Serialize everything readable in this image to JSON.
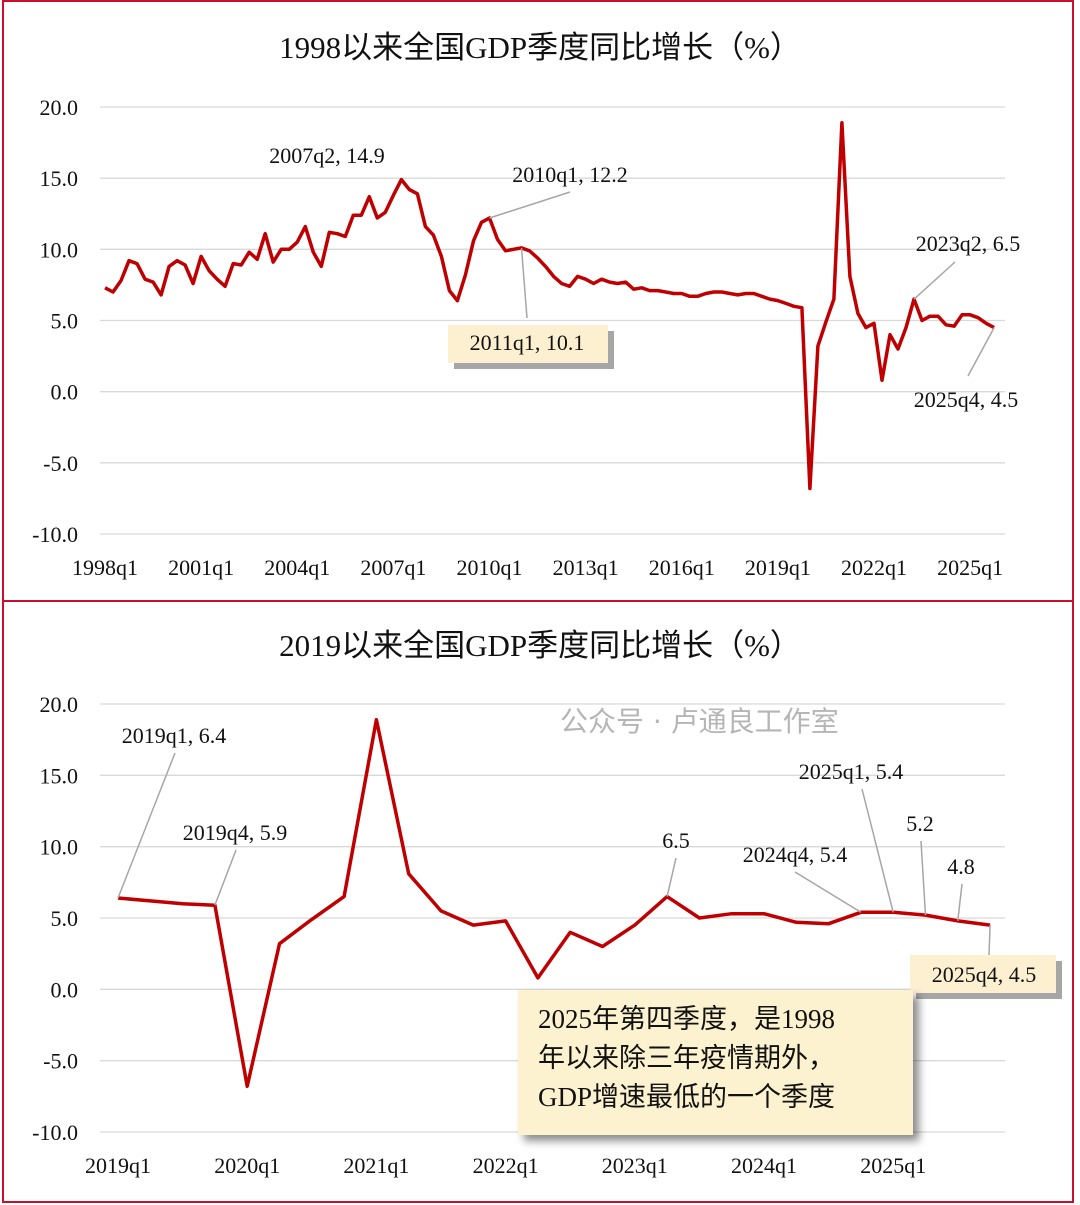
{
  "chart_data": [
    {
      "type": "line",
      "title": "1998以来全国GDP季度同比增长（%）",
      "ylim": [
        -10,
        20
      ],
      "yticks": [
        "20.0",
        "15.0",
        "10.0",
        "5.0",
        "0.0",
        "-5.0",
        "-10.0"
      ],
      "xticks": [
        "1998q1",
        "2001q1",
        "2004q1",
        "2007q1",
        "2010q1",
        "2013q1",
        "2016q1",
        "2019q1",
        "2022q1",
        "2025q1"
      ],
      "x_start": "1998q1",
      "x_end": "2025q4",
      "series": [
        {
          "name": "GDP同比",
          "color": "#c00000",
          "values": [
            7.3,
            7.0,
            7.8,
            9.2,
            9.0,
            7.9,
            7.7,
            6.8,
            8.8,
            9.2,
            8.9,
            7.6,
            9.5,
            8.5,
            7.9,
            7.4,
            9.0,
            8.9,
            9.8,
            9.3,
            11.1,
            9.1,
            10.0,
            10.0,
            10.5,
            11.6,
            9.8,
            8.8,
            11.2,
            11.1,
            10.9,
            12.4,
            12.4,
            13.7,
            12.2,
            12.6,
            13.8,
            14.9,
            14.2,
            13.9,
            11.6,
            11.0,
            9.5,
            7.1,
            6.4,
            8.2,
            10.6,
            11.9,
            12.2,
            10.7,
            9.9,
            10.0,
            10.1,
            9.9,
            9.4,
            8.8,
            8.1,
            7.6,
            7.4,
            8.1,
            7.9,
            7.6,
            7.9,
            7.7,
            7.6,
            7.7,
            7.2,
            7.3,
            7.1,
            7.1,
            7.0,
            6.9,
            6.9,
            6.7,
            6.7,
            6.9,
            7.0,
            7.0,
            6.9,
            6.8,
            6.9,
            6.9,
            6.7,
            6.5,
            6.4,
            6.2,
            6.0,
            5.9,
            -6.8,
            3.2,
            4.9,
            6.5,
            18.9,
            8.1,
            5.5,
            4.5,
            4.8,
            0.8,
            4.0,
            3.0,
            4.5,
            6.5,
            5.0,
            5.3,
            5.3,
            4.7,
            4.6,
            5.4,
            5.4,
            5.2,
            4.8,
            4.5
          ]
        }
      ],
      "annotations": [
        "2007q2, 14.9",
        "2010q1, 12.2",
        "2011q1, 10.1",
        "2023q2, 6.5",
        "2025q4, 4.5"
      ],
      "grid": true
    },
    {
      "type": "line",
      "title": "2019以来全国GDP季度同比增长（%）",
      "ylim": [
        -10,
        20
      ],
      "yticks": [
        "20.0",
        "15.0",
        "10.0",
        "5.0",
        "0.0",
        "-5.0",
        "-10.0"
      ],
      "xticks": [
        "2019q1",
        "2020q1",
        "2021q1",
        "2022q1",
        "2023q1",
        "2024q1",
        "2025q1"
      ],
      "x_start": "2019q1",
      "x_end": "2025q4",
      "series": [
        {
          "name": "GDP同比",
          "color": "#c00000",
          "values": [
            6.4,
            6.2,
            6.0,
            5.9,
            -6.8,
            3.2,
            4.9,
            6.5,
            18.9,
            8.1,
            5.5,
            4.5,
            4.8,
            0.8,
            4.0,
            3.0,
            4.5,
            6.5,
            5.0,
            5.3,
            5.3,
            4.7,
            4.6,
            5.4,
            5.4,
            5.2,
            4.8,
            4.5
          ]
        }
      ],
      "annotations": [
        "2019q1, 6.4",
        "2019q4, 5.9",
        "6.5",
        "2024q4, 5.4",
        "2025q1, 5.4",
        "5.2",
        "4.8",
        "2025q4, 4.5"
      ],
      "note": [
        "2025年第四季度，是1998",
        "年以来除三年疫情期外，",
        "GDP增速最低的一个季度"
      ],
      "grid": true
    }
  ],
  "watermark": "公众号 · 卢通良工作室"
}
